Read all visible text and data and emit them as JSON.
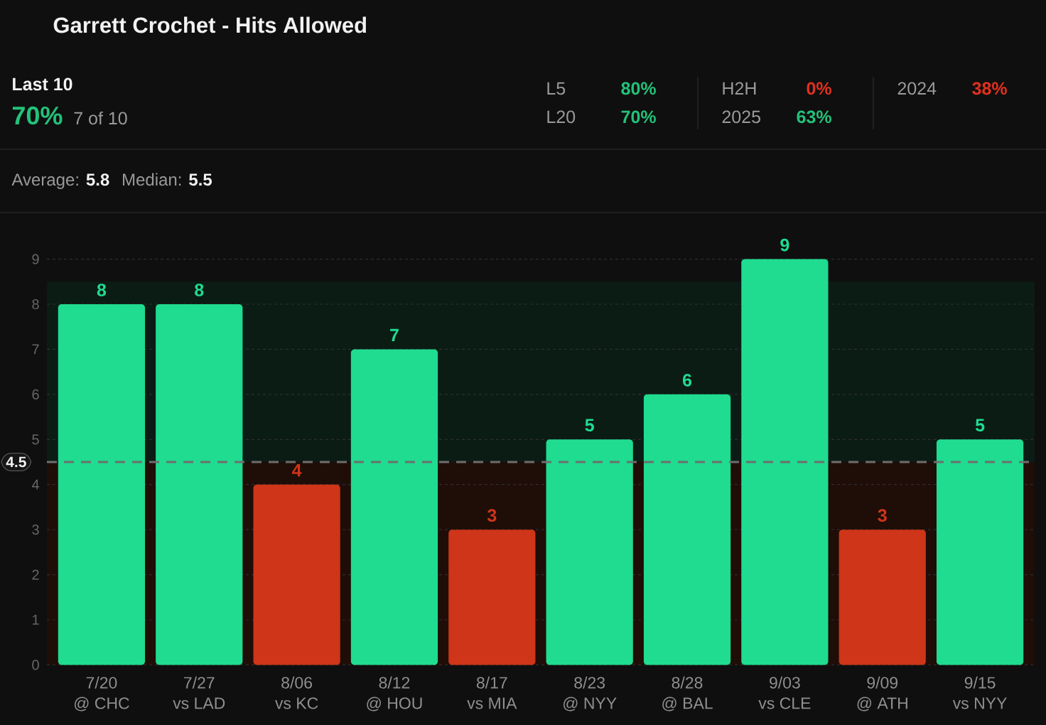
{
  "chart_data": [
    {
      "type": "other",
      "categories": [
        "Last 10",
        "L5",
        "L20",
        "H2H",
        "2025",
        "2024"
      ],
      "values": [
        70,
        80,
        70,
        0,
        63,
        38
      ],
      "value_labels": [
        "70%",
        "80%",
        "70%",
        "0%",
        "63%",
        "38%"
      ],
      "colors": [
        "#22c27a",
        "#22c27a",
        "#22c27a",
        "#e0301e",
        "#22c27a",
        "#e0301e"
      ],
      "annotations": [
        "7 of 10"
      ]
    },
    {
      "type": "bar",
      "title": "Garrett Crochet - Hits Allowed",
      "categories": [
        "7/20\n@ CHC",
        "7/27\nvs LAD",
        "8/06\nvs KC",
        "8/12\n@ HOU",
        "8/17\nvs MIA",
        "8/23\n@ NYY",
        "8/28\n@ BAL",
        "9/03\nvs CLE",
        "9/09\n@ ATH",
        "9/15\nvs NYY"
      ],
      "values": [
        8,
        8,
        4,
        7,
        3,
        5,
        6,
        9,
        3,
        5
      ],
      "colors": [
        "#1fdc91",
        "#1fdc91",
        "#cf3518",
        "#1fdc91",
        "#cf3518",
        "#1fdc91",
        "#1fdc91",
        "#1fdc91",
        "#cf3518",
        "#1fdc91"
      ],
      "ylim": [
        0,
        9
      ],
      "yticks": [
        0,
        1,
        2,
        3,
        4,
        5,
        6,
        7,
        8,
        9
      ],
      "grid": "y",
      "data_labels": true,
      "ref_lines": [
        {
          "axis": "y",
          "value": 4.5,
          "label": "4.5",
          "color": "#6e6e6e",
          "line_style": "dashed"
        }
      ],
      "bands": [
        {
          "axis": "y",
          "from": 4.5,
          "to": 8.5,
          "color": "#0b1c15"
        },
        {
          "axis": "y",
          "from": 0,
          "to": 4.5,
          "color": "#1f0d08"
        }
      ],
      "annotations": [
        "Average: **5.8**",
        "Median: **5.5**"
      ]
    }
  ]
}
